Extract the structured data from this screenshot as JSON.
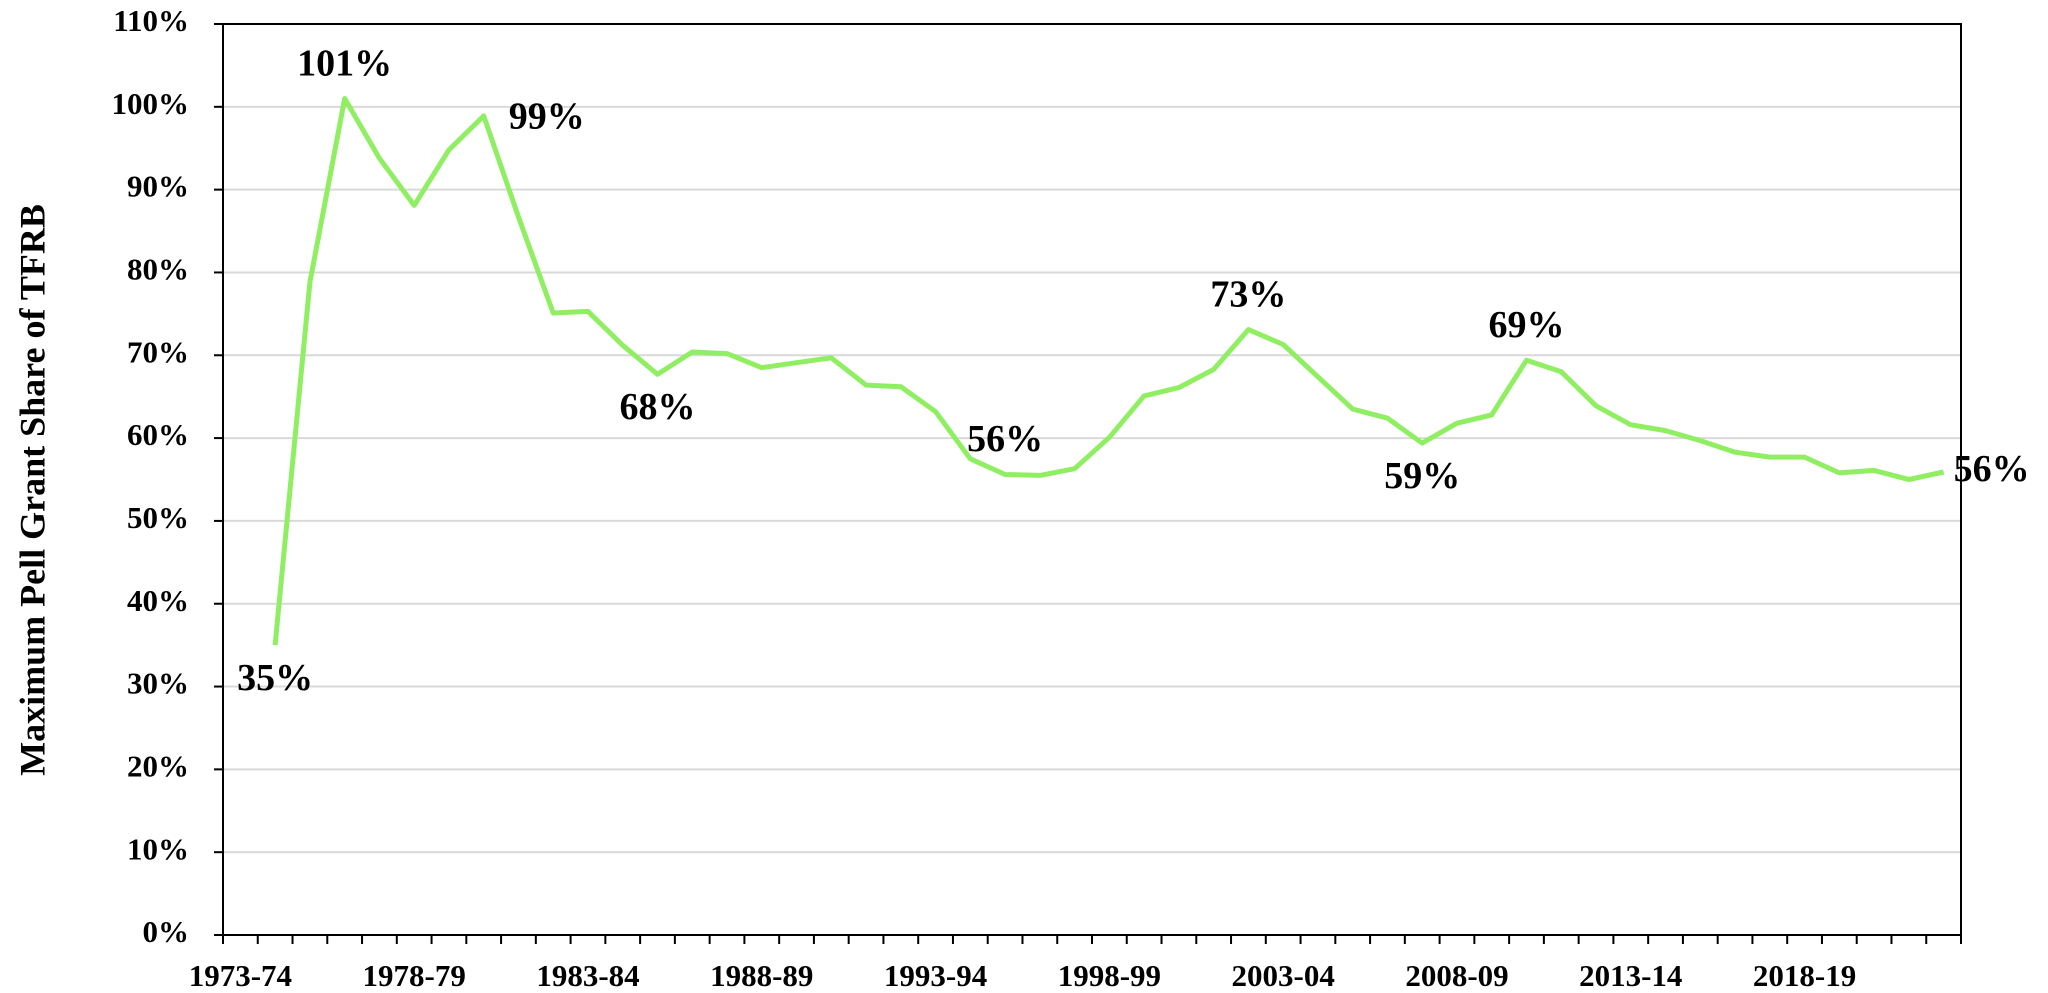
{
  "chart_data": {
    "type": "line",
    "y_label": "Maximum Pell Grant Share of TFRB",
    "categories": [
      "1973-74",
      null,
      null,
      null,
      null,
      "1978-79",
      null,
      null,
      null,
      null,
      "1983-84",
      null,
      null,
      null,
      null,
      "1988-89",
      null,
      null,
      null,
      null,
      "1993-94",
      null,
      null,
      null,
      null,
      "1998-99",
      null,
      null,
      null,
      null,
      "2003-04",
      null,
      null,
      null,
      null,
      "2008-09",
      null,
      null,
      null,
      null,
      "2013-14",
      null,
      null,
      null,
      null,
      "2018-19",
      null,
      null,
      null,
      null
    ],
    "series": [
      {
        "name": "Maximum Pell Grant Share of TFRB",
        "color": "#90ee63",
        "values": [
          null,
          35,
          78.8,
          101,
          93.8,
          88.1,
          94.8,
          98.9,
          86.7,
          75.1,
          75.3,
          71.2,
          67.7,
          70.4,
          70.2,
          68.5,
          69.1,
          69.7,
          66.4,
          66.2,
          63.2,
          57.5,
          55.6,
          55.5,
          56.3,
          60.1,
          65.1,
          66.1,
          68.3,
          73.1,
          71.3,
          67.4,
          63.5,
          62.4,
          59.4,
          61.8,
          62.8,
          69.4,
          68.0,
          63.9,
          61.6,
          60.9,
          59.7,
          58.3,
          57.7,
          57.7,
          55.8,
          56.1,
          55.0,
          55.9
        ],
        "value_labels": [
          null,
          "35%",
          null,
          "101%",
          null,
          null,
          null,
          "99%",
          null,
          null,
          null,
          null,
          "68%",
          null,
          null,
          null,
          null,
          null,
          null,
          null,
          null,
          null,
          "56%",
          null,
          null,
          null,
          null,
          null,
          null,
          "73%",
          null,
          null,
          null,
          null,
          "59%",
          null,
          null,
          "69%",
          null,
          null,
          null,
          null,
          null,
          null,
          null,
          null,
          null,
          null,
          null,
          "56%"
        ]
      }
    ],
    "ylim": [
      0,
      110
    ],
    "yticks": [
      {
        "value": 0,
        "label": "0%"
      },
      {
        "value": 10,
        "label": "10%"
      },
      {
        "value": 20,
        "label": "20%"
      },
      {
        "value": 30,
        "label": "30%"
      },
      {
        "value": 40,
        "label": "40%"
      },
      {
        "value": 50,
        "label": "50%"
      },
      {
        "value": 60,
        "label": "60%"
      },
      {
        "value": 70,
        "label": "70%"
      },
      {
        "value": 80,
        "label": "80%"
      },
      {
        "value": 90,
        "label": "90%"
      },
      {
        "value": 100,
        "label": "100%"
      },
      {
        "value": 110,
        "label": "110%"
      }
    ],
    "grid": true
  }
}
